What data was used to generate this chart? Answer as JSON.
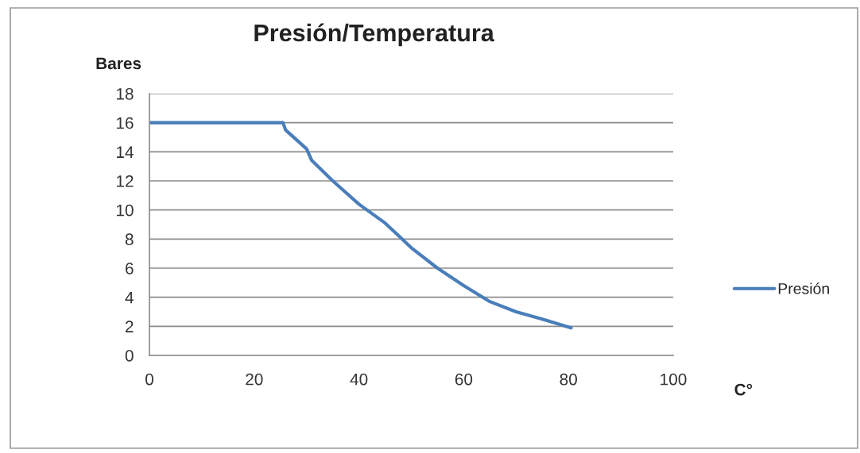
{
  "chart_data": {
    "type": "line",
    "title": "Presión/Temperatura",
    "xlabel": "C°",
    "ylabel": "Bares",
    "x": [
      0,
      25.5,
      26,
      30,
      31,
      35,
      40,
      45,
      50,
      55,
      60,
      65,
      70,
      75,
      80.5
    ],
    "series": [
      {
        "name": "Presión",
        "color": "#4a7ebb",
        "values": [
          16,
          16,
          15.5,
          14.2,
          13.4,
          12,
          10.4,
          9.1,
          7.4,
          6,
          4.8,
          3.7,
          3,
          2.5,
          1.9
        ]
      }
    ],
    "xlim": [
      0,
      100
    ],
    "xticks": [
      0,
      20,
      40,
      60,
      80,
      100
    ],
    "ylim": [
      0,
      18
    ],
    "yticks": [
      0,
      2,
      4,
      6,
      8,
      10,
      12,
      14,
      16,
      18
    ],
    "grid": "y",
    "legend": "right"
  }
}
